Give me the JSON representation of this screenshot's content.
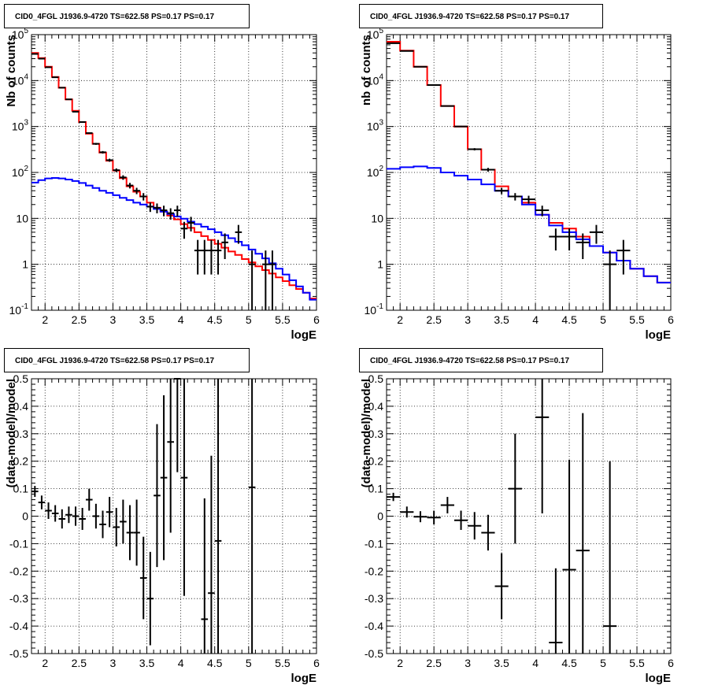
{
  "chart_data": [
    {
      "type": "line",
      "title": "CID0_4FGL J1936.9-4720 TS=622.58 PS=0.17 PS=0.17",
      "xlabel": "logE",
      "ylabel": "Nb of counts",
      "log_y": true,
      "xlim": [
        1.8,
        6.0
      ],
      "ylim": [
        0.1,
        100000
      ],
      "grid": true,
      "x_ticks": [
        2,
        2.5,
        3,
        3.5,
        4,
        4.5,
        5,
        5.5,
        6
      ],
      "x_tick_labels": [
        "2",
        "2.5",
        "3",
        "3.5",
        "4",
        "4.5",
        "5",
        "5.5",
        "6"
      ],
      "y_ticks": [
        0.1,
        1,
        10,
        100,
        1000,
        10000,
        100000
      ],
      "y_tick_labels": [
        "10^-1",
        "1",
        "10",
        "10^2",
        "10^3",
        "10^4",
        "10^5"
      ],
      "bin_width": 0.1,
      "series": [
        {
          "color": "#ff0000",
          "kind": "step",
          "x": [
            1.8,
            1.9,
            2.0,
            2.1,
            2.2,
            2.3,
            2.4,
            2.5,
            2.6,
            2.7,
            2.8,
            2.9,
            3.0,
            3.1,
            3.2,
            3.3,
            3.4,
            3.5,
            3.6,
            3.7,
            3.8,
            3.9,
            4.0,
            4.1,
            4.2,
            4.3,
            4.4,
            4.5,
            4.6,
            4.7,
            4.8,
            4.9,
            5.0,
            5.1,
            5.2,
            5.3,
            5.4,
            5.5,
            5.6,
            5.7,
            5.8,
            5.9
          ],
          "values": [
            40000,
            31000,
            20000,
            12000,
            7000,
            3900,
            2200,
            1250,
            700,
            420,
            270,
            180,
            110,
            75,
            50,
            38,
            30,
            22,
            17,
            14,
            11.5,
            9.5,
            7.5,
            6.2,
            5,
            4.1,
            3.4,
            2.8,
            2.3,
            1.9,
            1.6,
            1.3,
            1.1,
            0.9,
            0.75,
            0.63,
            0.52,
            0.43,
            0.35,
            0.29,
            0.24,
            0.18
          ]
        },
        {
          "color": "#0000ff",
          "kind": "step",
          "x": [
            1.8,
            1.9,
            2.0,
            2.1,
            2.2,
            2.3,
            2.4,
            2.5,
            2.6,
            2.7,
            2.8,
            2.9,
            3.0,
            3.1,
            3.2,
            3.3,
            3.4,
            3.5,
            3.6,
            3.7,
            3.8,
            3.9,
            4.0,
            4.1,
            4.2,
            4.3,
            4.4,
            4.5,
            4.6,
            4.7,
            4.8,
            4.9,
            5.0,
            5.1,
            5.2,
            5.3,
            5.4,
            5.5,
            5.6,
            5.7,
            5.8,
            5.9
          ],
          "values": [
            60,
            68,
            74,
            76,
            74,
            70,
            65,
            59,
            52,
            46,
            40,
            36,
            32,
            28,
            25,
            22,
            20,
            18,
            16,
            14,
            12.5,
            11,
            9.8,
            8.5,
            7.5,
            6.6,
            5.8,
            5,
            4.3,
            3.7,
            3.1,
            2.6,
            2.1,
            1.7,
            1.35,
            1.05,
            0.8,
            0.6,
            0.45,
            0.33,
            0.24,
            0.17
          ]
        },
        {
          "color": "#000000",
          "kind": "points",
          "x": [
            1.85,
            1.95,
            2.05,
            2.15,
            2.25,
            2.35,
            2.45,
            2.55,
            2.65,
            2.75,
            2.85,
            2.95,
            3.05,
            3.15,
            3.25,
            3.35,
            3.45,
            3.55,
            3.65,
            3.75,
            3.85,
            3.95,
            4.05,
            4.15,
            4.25,
            4.35,
            4.45,
            4.55,
            4.65,
            4.85,
            5.05,
            5.25,
            5.35
          ],
          "values": [
            38000,
            30000,
            19500,
            11800,
            7000,
            3900,
            2100,
            1250,
            720,
            420,
            275,
            185,
            112,
            78,
            52,
            40,
            30,
            18,
            17,
            15,
            13,
            15,
            6,
            8,
            2,
            2,
            2,
            2,
            3,
            5,
            1,
            1,
            1
          ],
          "y_err": [
            195,
            173,
            140,
            109,
            84,
            62,
            46,
            35,
            27,
            20,
            17,
            14,
            10.6,
            8.8,
            7.2,
            6.3,
            5.5,
            4.2,
            4.1,
            3.9,
            3.6,
            3.9,
            2.4,
            2.8,
            1.4,
            1.4,
            1.4,
            1.4,
            1.7,
            2.2,
            1.0,
            1.0,
            1.0
          ]
        }
      ]
    },
    {
      "type": "line",
      "title": "CID0_4FGL J1936.9-4720 TS=622.58 PS=0.17 PS=0.17",
      "xlabel": "logE",
      "ylabel": "nb of counts",
      "log_y": true,
      "xlim": [
        1.8,
        6.0
      ],
      "ylim": [
        0.1,
        100000
      ],
      "grid": true,
      "x_ticks": [
        2,
        2.5,
        3,
        3.5,
        4,
        4.5,
        5,
        5.5,
        6
      ],
      "x_tick_labels": [
        "2",
        "2.5",
        "3",
        "3.5",
        "4",
        "4.5",
        "5",
        "5.5",
        "6"
      ],
      "y_ticks": [
        0.1,
        1,
        10,
        100,
        1000,
        10000,
        100000
      ],
      "y_tick_labels": [
        "10^-1",
        "1",
        "10",
        "10^2",
        "10^3",
        "10^4",
        "10^5"
      ],
      "bin_width": 0.2,
      "series": [
        {
          "color": "#ff0000",
          "kind": "step",
          "x": [
            1.8,
            2.0,
            2.2,
            2.4,
            2.6,
            2.8,
            3.0,
            3.2,
            3.4,
            3.6,
            3.8,
            4.0,
            4.2,
            4.4,
            4.6,
            4.8,
            5.0,
            5.2,
            5.4,
            5.6,
            5.8
          ],
          "values": [
            70000,
            45000,
            20000,
            8000,
            2800,
            1000,
            320,
            115,
            50,
            30,
            22,
            12,
            8,
            6,
            4,
            2.5,
            1.8,
            1.2,
            0.8,
            0.55,
            0.4
          ]
        },
        {
          "color": "#0000ff",
          "kind": "step",
          "x": [
            1.8,
            2.0,
            2.2,
            2.4,
            2.6,
            2.8,
            3.0,
            3.2,
            3.4,
            3.6,
            3.8,
            4.0,
            4.2,
            4.4,
            4.6,
            4.8,
            5.0,
            5.2,
            5.4,
            5.6,
            5.8
          ],
          "values": [
            120,
            130,
            135,
            125,
            100,
            85,
            70,
            55,
            40,
            30,
            20,
            12,
            7,
            5,
            3.5,
            2.5,
            1.8,
            1.2,
            0.8,
            0.55,
            0.4
          ]
        },
        {
          "color": "#000000",
          "kind": "points",
          "x": [
            1.9,
            2.1,
            2.3,
            2.5,
            2.7,
            2.9,
            3.1,
            3.3,
            3.5,
            3.7,
            3.9,
            4.1,
            4.3,
            4.5,
            4.7,
            4.9,
            5.1,
            5.3
          ],
          "values": [
            65000,
            44000,
            20000,
            8000,
            2800,
            1000,
            320,
            115,
            40,
            30,
            26,
            15,
            4,
            4,
            3,
            5,
            1,
            2
          ],
          "y_err": [
            255,
            210,
            141,
            89,
            53,
            32,
            18,
            10.7,
            6.3,
            5.5,
            5.1,
            3.9,
            2.0,
            2.0,
            1.7,
            2.2,
            1.0,
            1.4
          ]
        }
      ]
    },
    {
      "type": "scatter",
      "title": "CID0_4FGL J1936.9-4720 TS=622.58 PS=0.17 PS=0.17",
      "xlabel": "logE",
      "ylabel": "(data-model)/model",
      "xlim": [
        1.8,
        6.0
      ],
      "ylim": [
        -0.5,
        0.5
      ],
      "grid": true,
      "x_ticks": [
        2,
        2.5,
        3,
        3.5,
        4,
        4.5,
        5,
        5.5,
        6
      ],
      "x_tick_labels": [
        "2",
        "2.5",
        "3",
        "3.5",
        "4",
        "4.5",
        "5",
        "5.5",
        "6"
      ],
      "y_ticks": [
        -0.5,
        -0.4,
        -0.3,
        -0.2,
        -0.1,
        0,
        0.1,
        0.2,
        0.3,
        0.4,
        0.5
      ],
      "y_tick_labels": [
        "-0.5",
        "-0.4",
        "-0.3",
        "-0.2",
        "-0.1",
        "0",
        "0.1",
        "0.2",
        "0.3",
        "0.4",
        "0.5"
      ],
      "bin_width": 0.1,
      "series": [
        {
          "color": "#000000",
          "x": [
            1.85,
            1.95,
            2.05,
            2.15,
            2.25,
            2.35,
            2.45,
            2.55,
            2.65,
            2.75,
            2.85,
            2.95,
            3.05,
            3.15,
            3.25,
            3.35,
            3.45,
            3.55,
            3.65,
            3.75,
            3.85,
            3.95,
            4.05,
            4.35,
            4.45,
            4.55,
            5.05
          ],
          "values": [
            0.09,
            0.05,
            0.02,
            0.01,
            -0.01,
            0.005,
            0.0,
            -0.01,
            0.06,
            0.0,
            -0.03,
            0.015,
            -0.04,
            -0.02,
            -0.06,
            -0.06,
            -0.225,
            -0.3,
            0.075,
            0.14,
            0.27,
            0.54,
            0.14,
            -0.375,
            -0.28,
            -0.09,
            0.105
          ],
          "y_err": [
            0.02,
            0.025,
            0.03,
            0.03,
            0.035,
            0.03,
            0.035,
            0.04,
            0.04,
            0.045,
            0.05,
            0.055,
            0.07,
            0.08,
            0.1,
            0.12,
            0.15,
            0.17,
            0.26,
            0.3,
            0.33,
            0.38,
            0.43,
            0.44,
            0.5,
            0.6,
            0.9
          ]
        }
      ]
    },
    {
      "type": "scatter",
      "title": "CID0_4FGL J1936.9-4720 TS=622.58 PS=0.17 PS=0.17",
      "xlabel": "logE",
      "ylabel": "(data-model)/model",
      "xlim": [
        1.8,
        6.0
      ],
      "ylim": [
        -0.5,
        0.5
      ],
      "grid": true,
      "x_ticks": [
        2,
        2.5,
        3,
        3.5,
        4,
        4.5,
        5,
        5.5,
        6
      ],
      "x_tick_labels": [
        "2",
        "2.5",
        "3",
        "3.5",
        "4",
        "4.5",
        "5",
        "5.5",
        "6"
      ],
      "y_ticks": [
        -0.5,
        -0.4,
        -0.3,
        -0.2,
        -0.1,
        0,
        0.1,
        0.2,
        0.3,
        0.4,
        0.5
      ],
      "y_tick_labels": [
        "-0.5",
        "-0.4",
        "-0.3",
        "-0.2",
        "-0.1",
        "0",
        "0.1",
        "0.2",
        "0.3",
        "0.4",
        "0.5"
      ],
      "bin_width": 0.2,
      "series": [
        {
          "color": "#000000",
          "x": [
            1.9,
            2.1,
            2.3,
            2.5,
            2.7,
            2.9,
            3.1,
            3.3,
            3.5,
            3.7,
            4.1,
            4.3,
            4.5,
            4.7,
            5.1
          ],
          "values": [
            0.07,
            0.015,
            -0.002,
            -0.005,
            0.04,
            -0.015,
            -0.035,
            -0.06,
            -0.255,
            0.1,
            0.36,
            -0.46,
            -0.195,
            -0.125,
            -0.4
          ],
          "y_err": [
            0.015,
            0.02,
            0.02,
            0.025,
            0.03,
            0.035,
            0.05,
            0.065,
            0.12,
            0.2,
            0.35,
            0.27,
            0.4,
            0.5,
            0.6
          ]
        }
      ]
    }
  ]
}
